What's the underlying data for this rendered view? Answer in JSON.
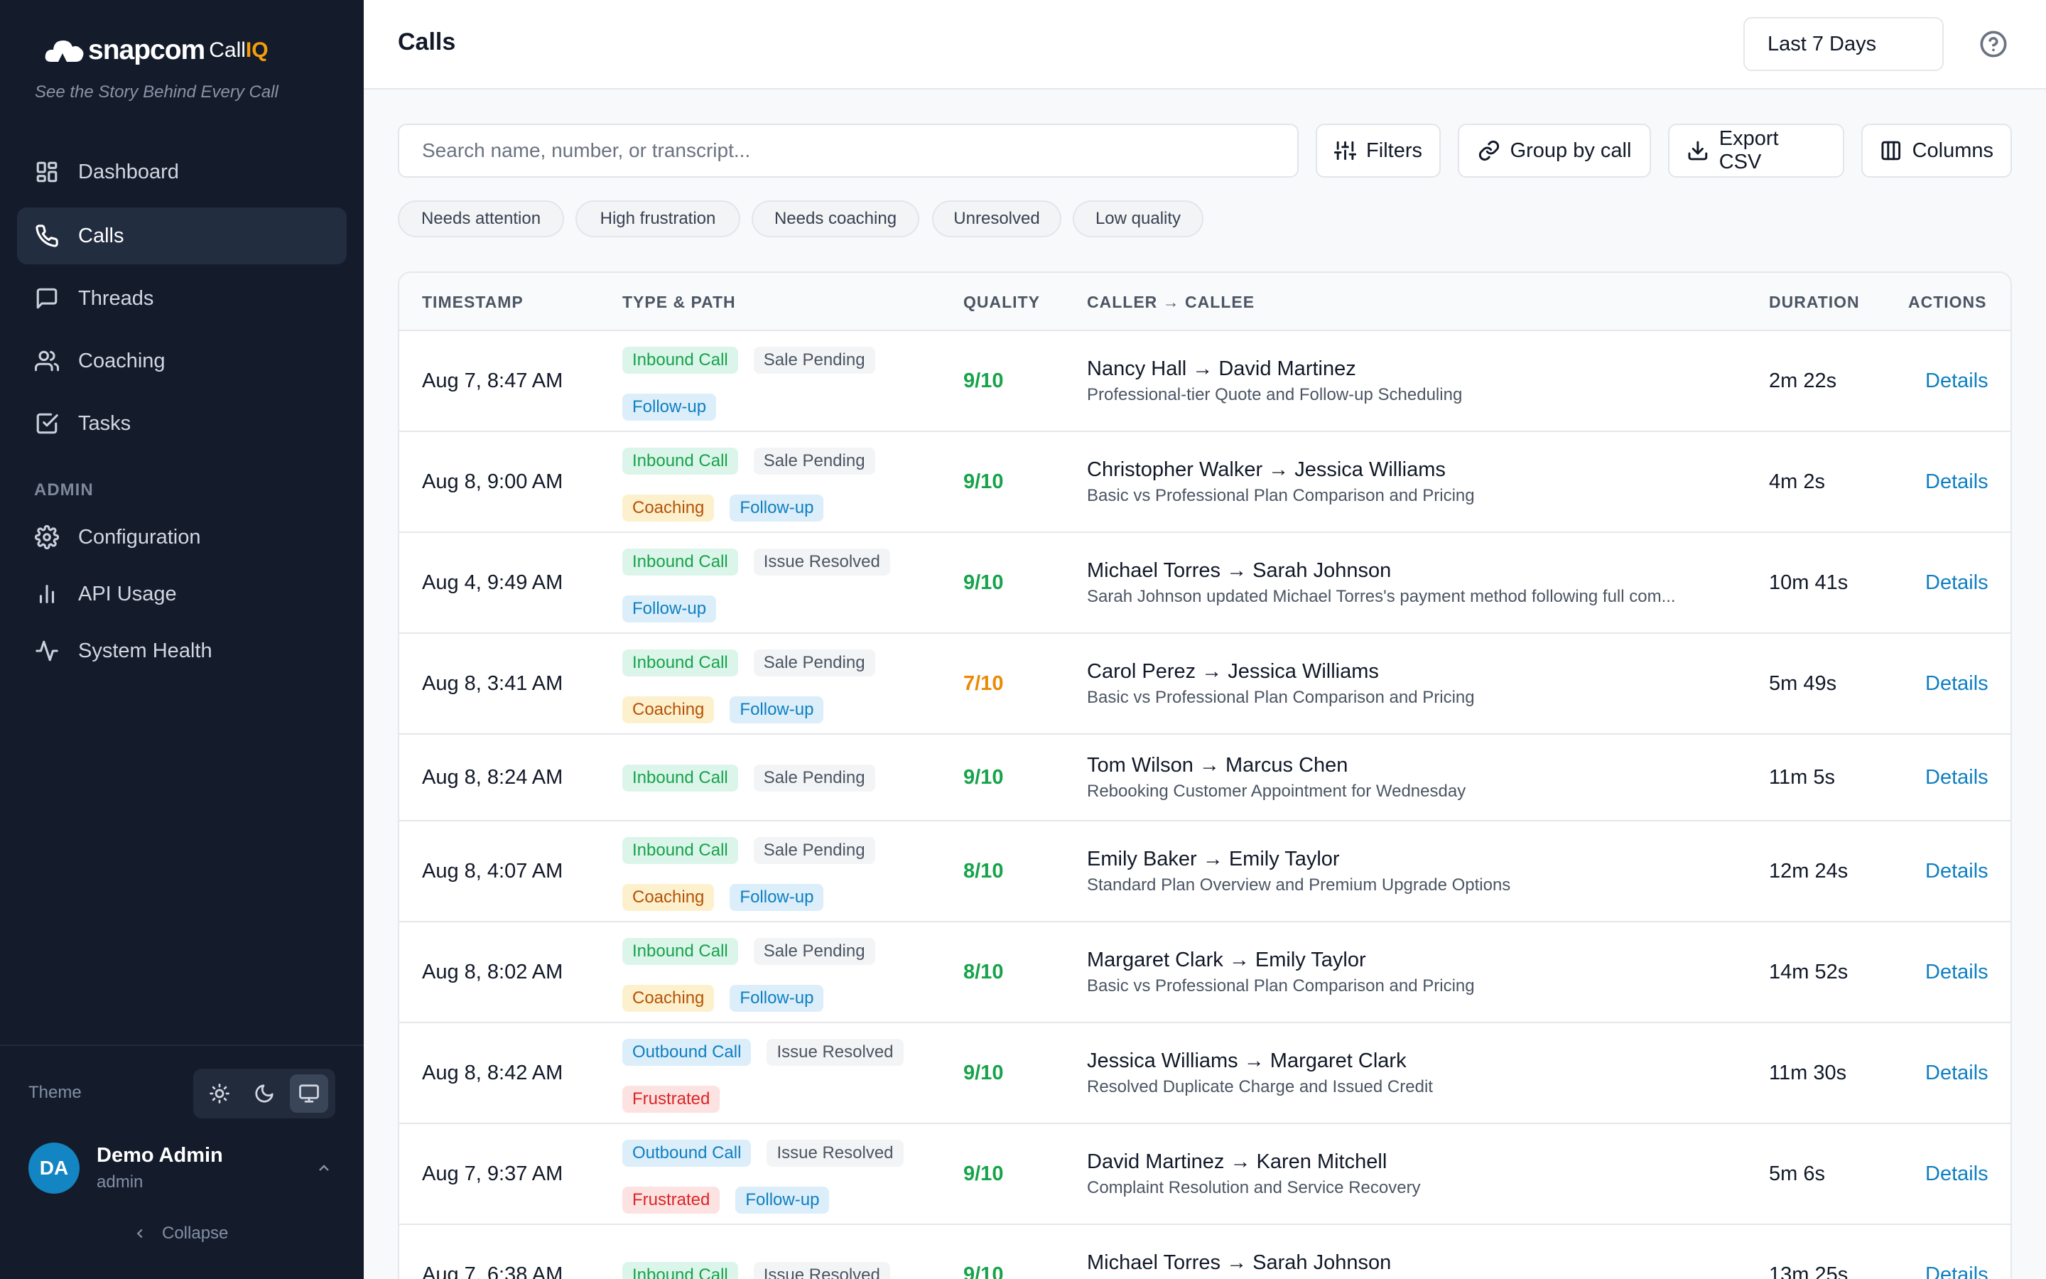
{
  "brand": {
    "name": "snapcom",
    "product": "Call",
    "product_suffix": "IQ",
    "tagline": "See the Story Behind Every Call"
  },
  "nav": {
    "items": [
      {
        "label": "Dashboard",
        "icon": "dashboard-icon"
      },
      {
        "label": "Calls",
        "icon": "phone-icon",
        "active": true
      },
      {
        "label": "Threads",
        "icon": "message-icon"
      },
      {
        "label": "Coaching",
        "icon": "users-icon"
      },
      {
        "label": "Tasks",
        "icon": "check-square-icon"
      }
    ],
    "admin_label": "ADMIN",
    "admin_items": [
      {
        "label": "Configuration",
        "icon": "gear-icon"
      },
      {
        "label": "API Usage",
        "icon": "bar-chart-icon"
      },
      {
        "label": "System Health",
        "icon": "activity-icon"
      }
    ]
  },
  "theme": {
    "label": "Theme",
    "options": [
      "light",
      "dark",
      "system"
    ],
    "selected": "system"
  },
  "user": {
    "initials": "DA",
    "name": "Demo Admin",
    "role": "admin",
    "collapse_label": "Collapse"
  },
  "header": {
    "title": "Calls",
    "date_range": "Last 7 Days"
  },
  "toolbar": {
    "search_placeholder": "Search name, number, or transcript...",
    "filters_label": "Filters",
    "group_label": "Group by call",
    "export_label": "Export CSV",
    "columns_label": "Columns"
  },
  "quick_filters": [
    "Needs attention",
    "High frustration",
    "Needs coaching",
    "Unresolved",
    "Low quality"
  ],
  "table": {
    "columns": {
      "timestamp": "TIMESTAMP",
      "type_path": "TYPE & PATH",
      "quality": "QUALITY",
      "parties": "CALLER → CALLEE",
      "duration": "DURATION",
      "actions": "ACTIONS"
    },
    "action_label": "Details",
    "rows": [
      {
        "timestamp": "Aug 7, 8:47 AM",
        "tags": [
          {
            "text": "Inbound Call",
            "kind": "inbound"
          },
          {
            "text": "Sale Pending",
            "kind": "neutral"
          },
          {
            "text": "Follow-up",
            "kind": "followup"
          }
        ],
        "quality": "9/10",
        "quality_level": "good",
        "parties": "Nancy Hall → David Martinez",
        "summary": "Professional-tier Quote and Follow-up Scheduling",
        "duration": "2m 22s"
      },
      {
        "timestamp": "Aug 8, 9:00 AM",
        "tags": [
          {
            "text": "Inbound Call",
            "kind": "inbound"
          },
          {
            "text": "Sale Pending",
            "kind": "neutral"
          },
          {
            "text": "Coaching",
            "kind": "coaching"
          },
          {
            "text": "Follow-up",
            "kind": "followup"
          }
        ],
        "quality": "9/10",
        "quality_level": "good",
        "parties": "Christopher Walker → Jessica Williams",
        "summary": "Basic vs Professional Plan Comparison and Pricing",
        "duration": "4m 2s"
      },
      {
        "timestamp": "Aug 4, 9:49 AM",
        "tags": [
          {
            "text": "Inbound Call",
            "kind": "inbound"
          },
          {
            "text": "Issue Resolved",
            "kind": "neutral"
          },
          {
            "text": "Follow-up",
            "kind": "followup"
          }
        ],
        "quality": "9/10",
        "quality_level": "good",
        "parties": "Michael Torres → Sarah Johnson",
        "summary": "Sarah Johnson updated Michael Torres's payment method following full com...",
        "duration": "10m 41s"
      },
      {
        "timestamp": "Aug 8, 3:41 AM",
        "tags": [
          {
            "text": "Inbound Call",
            "kind": "inbound"
          },
          {
            "text": "Sale Pending",
            "kind": "neutral"
          },
          {
            "text": "Coaching",
            "kind": "coaching"
          },
          {
            "text": "Follow-up",
            "kind": "followup"
          }
        ],
        "quality": "7/10",
        "quality_level": "mid",
        "parties": "Carol Perez → Jessica Williams",
        "summary": "Basic vs Professional Plan Comparison and Pricing",
        "duration": "5m 49s"
      },
      {
        "timestamp": "Aug 8, 8:24 AM",
        "tags": [
          {
            "text": "Inbound Call",
            "kind": "inbound"
          },
          {
            "text": "Sale Pending",
            "kind": "neutral"
          }
        ],
        "quality": "9/10",
        "quality_level": "good",
        "parties": "Tom Wilson → Marcus Chen",
        "summary": "Rebooking Customer Appointment for Wednesday",
        "duration": "11m 5s"
      },
      {
        "timestamp": "Aug 8, 4:07 AM",
        "tags": [
          {
            "text": "Inbound Call",
            "kind": "inbound"
          },
          {
            "text": "Sale Pending",
            "kind": "neutral"
          },
          {
            "text": "Coaching",
            "kind": "coaching"
          },
          {
            "text": "Follow-up",
            "kind": "followup"
          }
        ],
        "quality": "8/10",
        "quality_level": "good",
        "parties": "Emily Baker → Emily Taylor",
        "summary": "Standard Plan Overview and Premium Upgrade Options",
        "duration": "12m 24s"
      },
      {
        "timestamp": "Aug 8, 8:02 AM",
        "tags": [
          {
            "text": "Inbound Call",
            "kind": "inbound"
          },
          {
            "text": "Sale Pending",
            "kind": "neutral"
          },
          {
            "text": "Coaching",
            "kind": "coaching"
          },
          {
            "text": "Follow-up",
            "kind": "followup"
          }
        ],
        "quality": "8/10",
        "quality_level": "good",
        "parties": "Margaret Clark → Emily Taylor",
        "summary": "Basic vs Professional Plan Comparison and Pricing",
        "duration": "14m 52s"
      },
      {
        "timestamp": "Aug 8, 8:42 AM",
        "tags": [
          {
            "text": "Outbound Call",
            "kind": "outbound"
          },
          {
            "text": "Issue Resolved",
            "kind": "neutral"
          },
          {
            "text": "Frustrated",
            "kind": "frustrated"
          }
        ],
        "quality": "9/10",
        "quality_level": "good",
        "parties": "Jessica Williams → Margaret Clark",
        "summary": "Resolved Duplicate Charge and Issued Credit",
        "duration": "11m 30s"
      },
      {
        "timestamp": "Aug 7, 9:37 AM",
        "tags": [
          {
            "text": "Outbound Call",
            "kind": "outbound"
          },
          {
            "text": "Issue Resolved",
            "kind": "neutral"
          },
          {
            "text": "Frustrated",
            "kind": "frustrated"
          },
          {
            "text": "Follow-up",
            "kind": "followup"
          }
        ],
        "quality": "9/10",
        "quality_level": "good",
        "parties": "David Martinez → Karen Mitchell",
        "summary": "Complaint Resolution and Service Recovery",
        "duration": "5m 6s"
      },
      {
        "timestamp": "Aug 7, 6:38 AM",
        "tags": [
          {
            "text": "Inbound Call",
            "kind": "inbound"
          },
          {
            "text": "Issue Resolved",
            "kind": "neutral"
          }
        ],
        "quality": "9/10",
        "quality_level": "good",
        "parties": "Michael Torres → Sarah Johnson",
        "summary": "",
        "duration": "13m 25s"
      }
    ]
  },
  "colors": {
    "sidebar_bg": "#141c2b",
    "accent": "#0f7fc1",
    "brand_iq": "#f59e0b",
    "quality_good": "#16a34a",
    "quality_mid": "#ea8a04"
  }
}
